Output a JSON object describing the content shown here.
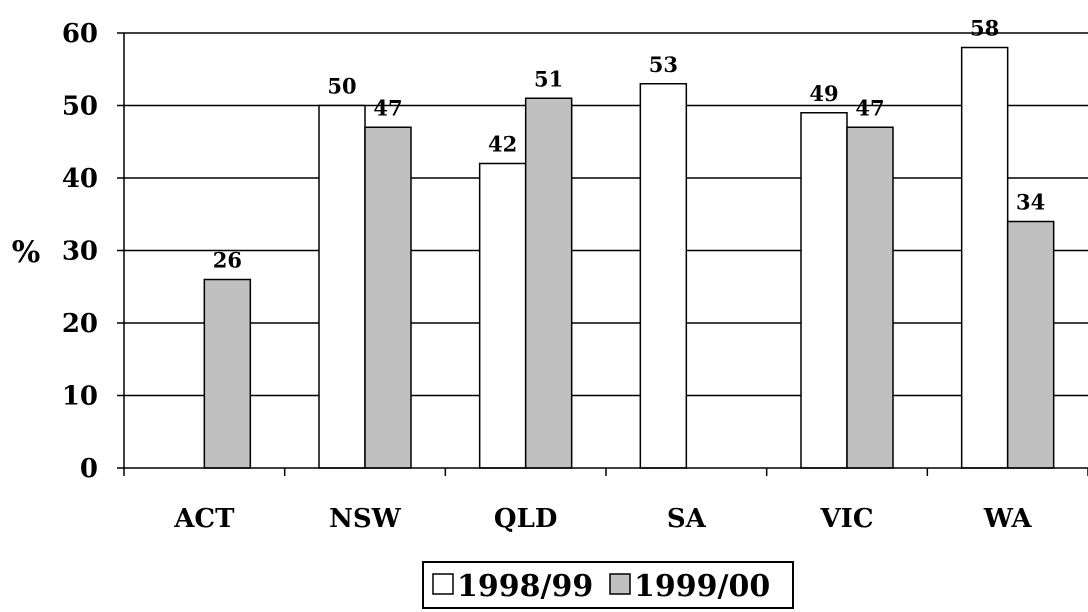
{
  "chart_data": {
    "type": "bar",
    "title": "",
    "xlabel": "",
    "ylabel": "%",
    "ylim": [
      0,
      60
    ],
    "yticks": [
      "0",
      "10",
      "20",
      "30",
      "40",
      "50",
      "60"
    ],
    "categories": [
      "ACT",
      "NSW",
      "QLD",
      "SA",
      "VIC",
      "WA"
    ],
    "series": [
      {
        "name": "1998/99",
        "values": [
          null,
          50,
          42,
          53,
          49,
          58
        ],
        "color": "#ffffff"
      },
      {
        "name": "1999/00",
        "values": [
          26,
          47,
          51,
          null,
          47,
          34
        ],
        "color": "#c0c0c0"
      }
    ],
    "grid": true,
    "legend_position": "bottom"
  }
}
